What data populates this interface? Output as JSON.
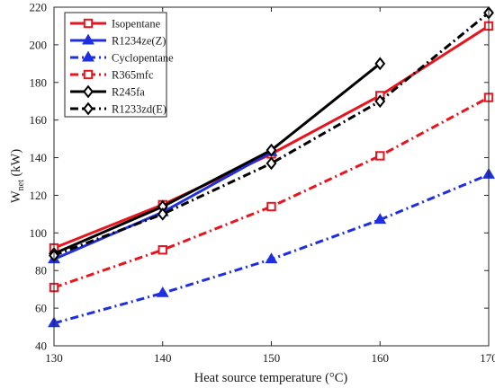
{
  "chart_data": {
    "type": "line",
    "title": "",
    "xlabel": "Heat source temperature (°C)",
    "ylabel": "W",
    "ylabel_sub": "net",
    "ylabel_unit": " (kW)",
    "xlim": [
      130,
      170
    ],
    "ylim": [
      40,
      220
    ],
    "xticks": [
      130,
      140,
      150,
      160,
      170
    ],
    "yticks": [
      40,
      60,
      80,
      100,
      120,
      140,
      160,
      180,
      200,
      220
    ],
    "grid": false,
    "legend_position": "top-left",
    "series": [
      {
        "name": "Isopentane",
        "color": "#e8141e",
        "marker": "square",
        "dash": "solid",
        "x": [
          130,
          140,
          150,
          160,
          170
        ],
        "y": [
          92,
          115,
          142,
          173,
          210
        ]
      },
      {
        "name": "R1234ze(Z)",
        "color": "#1f2fe0",
        "marker": "triangle",
        "dash": "solid",
        "x": [
          130,
          140,
          150
        ],
        "y": [
          86,
          111,
          143
        ]
      },
      {
        "name": "Cyclopentane",
        "color": "#1f2fe0",
        "marker": "triangle",
        "dash": "dashdot",
        "x": [
          130,
          140,
          150,
          160,
          170
        ],
        "y": [
          52,
          68,
          86,
          107,
          131
        ]
      },
      {
        "name": "R365mfc",
        "color": "#e8141e",
        "marker": "square",
        "dash": "dashdot",
        "x": [
          130,
          140,
          150,
          160,
          170
        ],
        "y": [
          71,
          91,
          114,
          141,
          172
        ]
      },
      {
        "name": "R245fa",
        "color": "#000000",
        "marker": "diamond",
        "dash": "solid",
        "x": [
          130,
          140,
          150,
          160
        ],
        "y": [
          89,
          114,
          144,
          190
        ]
      },
      {
        "name": "R1233zd(E)",
        "color": "#000000",
        "marker": "diamond",
        "dash": "dashdot",
        "x": [
          130,
          140,
          150,
          160,
          170
        ],
        "y": [
          88,
          110,
          137,
          170,
          217
        ]
      }
    ]
  }
}
